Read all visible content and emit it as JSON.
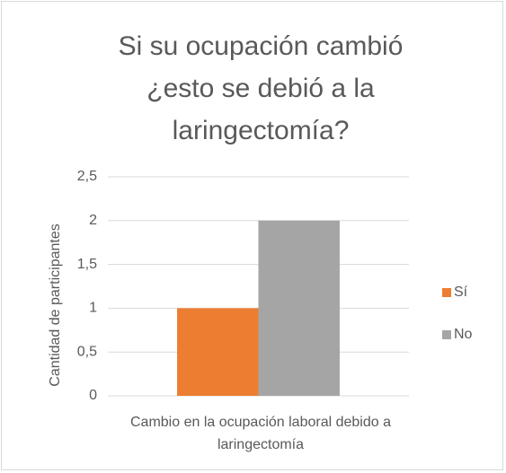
{
  "chart_data": {
    "type": "bar",
    "title": "Si su ocupación cambió ¿esto se debió a la laringectomía?",
    "y_label": "Cantidad de participantes",
    "categories": [
      "Cambio en la ocupación laboral debido a laringectomía"
    ],
    "series": [
      {
        "name": "Sí",
        "color": "#ed7d31",
        "values": [
          1
        ]
      },
      {
        "name": "No",
        "color": "#a5a5a5",
        "values": [
          2
        ]
      }
    ],
    "ylim": [
      0,
      2.5
    ],
    "yticks": [
      0,
      {
        "value": 0.5,
        "label": "0,5"
      },
      1,
      {
        "value": 1.5,
        "label": "1,5"
      },
      2,
      {
        "value": 2.5,
        "label": "2,5"
      }
    ],
    "grid": true,
    "legend": "right"
  }
}
